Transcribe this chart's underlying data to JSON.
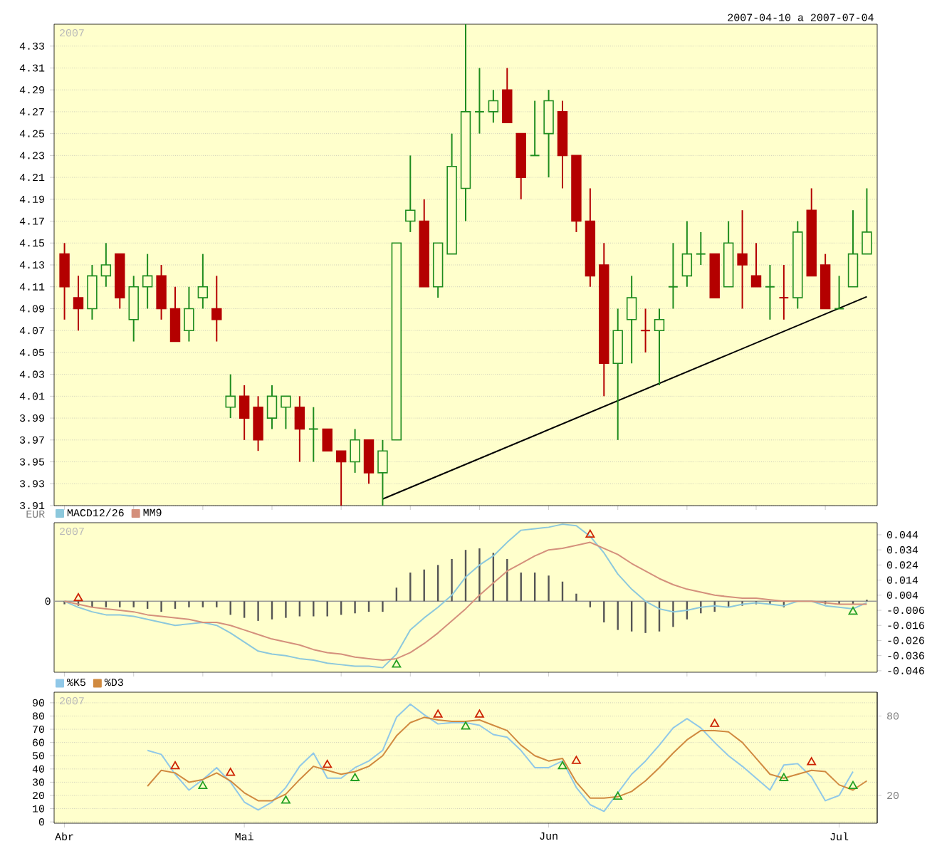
{
  "chart_data": [
    {
      "type": "candlestick",
      "subtitle": "2007-04-10 a 2007-07-04",
      "annotations": [
        "2007"
      ],
      "categories": [
        null,
        null,
        null,
        null,
        null,
        null,
        null,
        null,
        null,
        null,
        null,
        null,
        null,
        null,
        null,
        null,
        null,
        null,
        null,
        null,
        null,
        null,
        null,
        null,
        null,
        null,
        null,
        null,
        null,
        null,
        null,
        null,
        null,
        null,
        null,
        null,
        null,
        null,
        null,
        null,
        null,
        null,
        null,
        null,
        null,
        null,
        null,
        null,
        null,
        null,
        null,
        null,
        null,
        null,
        null,
        null,
        null,
        null,
        null
      ],
      "ohlc": [
        [
          4.14,
          4.15,
          4.08,
          4.11
        ],
        [
          4.1,
          4.12,
          4.07,
          4.09
        ],
        [
          4.09,
          4.13,
          4.08,
          4.12
        ],
        [
          4.12,
          4.15,
          4.11,
          4.13
        ],
        [
          4.14,
          4.14,
          4.09,
          4.1
        ],
        [
          4.08,
          4.12,
          4.06,
          4.11
        ],
        [
          4.11,
          4.14,
          4.09,
          4.12
        ],
        [
          4.12,
          4.13,
          4.08,
          4.09
        ],
        [
          4.09,
          4.11,
          4.06,
          4.06
        ],
        [
          4.07,
          4.11,
          4.06,
          4.09
        ],
        [
          4.1,
          4.14,
          4.09,
          4.11
        ],
        [
          4.09,
          4.12,
          4.06,
          4.08
        ],
        [
          4.0,
          4.03,
          3.99,
          4.01
        ],
        [
          4.01,
          4.02,
          3.97,
          3.99
        ],
        [
          4.0,
          4.01,
          3.96,
          3.97
        ],
        [
          3.99,
          4.02,
          3.98,
          4.01
        ],
        [
          4.0,
          4.01,
          3.98,
          4.01
        ],
        [
          4.0,
          4.01,
          3.95,
          3.98
        ],
        [
          3.98,
          4.0,
          3.95,
          3.98
        ],
        [
          3.98,
          3.98,
          3.96,
          3.96
        ],
        [
          3.96,
          3.96,
          3.91,
          3.95
        ],
        [
          3.95,
          3.98,
          3.94,
          3.97
        ],
        [
          3.97,
          3.97,
          3.93,
          3.94
        ],
        [
          3.94,
          3.97,
          3.91,
          3.96
        ],
        [
          3.97,
          4.15,
          3.97,
          4.15
        ],
        [
          4.17,
          4.23,
          4.16,
          4.18
        ],
        [
          4.17,
          4.19,
          4.11,
          4.11
        ],
        [
          4.11,
          4.15,
          4.1,
          4.15
        ],
        [
          4.14,
          4.25,
          4.14,
          4.22
        ],
        [
          4.2,
          4.35,
          4.17,
          4.27
        ],
        [
          4.27,
          4.31,
          4.25,
          4.27
        ],
        [
          4.27,
          4.29,
          4.26,
          4.28
        ],
        [
          4.29,
          4.31,
          4.26,
          4.26
        ],
        [
          4.25,
          4.25,
          4.19,
          4.21
        ],
        [
          4.23,
          4.28,
          4.23,
          4.23
        ],
        [
          4.25,
          4.29,
          4.21,
          4.28
        ],
        [
          4.27,
          4.28,
          4.2,
          4.23
        ],
        [
          4.23,
          4.23,
          4.16,
          4.17
        ],
        [
          4.17,
          4.2,
          4.11,
          4.12
        ],
        [
          4.13,
          4.15,
          4.01,
          4.04
        ],
        [
          4.04,
          4.09,
          3.97,
          4.07
        ],
        [
          4.08,
          4.12,
          4.04,
          4.1
        ],
        [
          4.07,
          4.09,
          4.05,
          4.07
        ],
        [
          4.07,
          4.09,
          4.02,
          4.08
        ],
        [
          4.11,
          4.15,
          4.09,
          4.11
        ],
        [
          4.12,
          4.17,
          4.11,
          4.14
        ],
        [
          4.14,
          4.16,
          4.13,
          4.14
        ],
        [
          4.14,
          4.14,
          4.1,
          4.1
        ],
        [
          4.11,
          4.17,
          4.11,
          4.15
        ],
        [
          4.14,
          4.18,
          4.09,
          4.13
        ],
        [
          4.12,
          4.15,
          4.11,
          4.11
        ],
        [
          4.11,
          4.13,
          4.08,
          4.11
        ],
        [
          4.1,
          4.13,
          4.08,
          4.1
        ],
        [
          4.1,
          4.17,
          4.09,
          4.16
        ],
        [
          4.18,
          4.2,
          4.12,
          4.12
        ],
        [
          4.13,
          4.14,
          4.09,
          4.09
        ],
        [
          4.09,
          4.12,
          4.09,
          4.09
        ],
        [
          4.11,
          4.18,
          4.11,
          4.14
        ],
        [
          4.14,
          4.2,
          4.14,
          4.16
        ]
      ],
      "colors": [
        "#b40000",
        "#b40000",
        "#1e8c1e",
        "#1e8c1e",
        "#b40000",
        "#1e8c1e",
        "#1e8c1e",
        "#b40000",
        "#b40000",
        "#1e8c1e",
        "#1e8c1e",
        "#b40000",
        "#1e8c1e",
        "#b40000",
        "#b40000",
        "#1e8c1e",
        "#1e8c1e",
        "#b40000",
        "#1e8c1e",
        "#b40000",
        "#b40000",
        "#1e8c1e",
        "#b40000",
        "#1e8c1e",
        "#1e8c1e",
        "#1e8c1e",
        "#b40000",
        "#1e8c1e",
        "#1e8c1e",
        "#1e8c1e",
        "#1e8c1e",
        "#1e8c1e",
        "#b40000",
        "#b40000",
        "#1e8c1e",
        "#1e8c1e",
        "#b40000",
        "#b40000",
        "#b40000",
        "#b40000",
        "#1e8c1e",
        "#1e8c1e",
        "#b40000",
        "#1e8c1e",
        "#1e8c1e",
        "#1e8c1e",
        "#1e8c1e",
        "#b40000",
        "#1e8c1e",
        "#b40000",
        "#b40000",
        "#1e8c1e",
        "#b40000",
        "#1e8c1e",
        "#b40000",
        "#b40000",
        "#1e8c1e",
        "#1e8c1e",
        "#1e8c1e"
      ],
      "series": [
        {
          "type": "line",
          "color": "#000000",
          "values": [
            null,
            null,
            null,
            null,
            null,
            null,
            null,
            null,
            null,
            null,
            null,
            null,
            null,
            null,
            null,
            null,
            null,
            null,
            null,
            null,
            null,
            null,
            null,
            3.916,
            null,
            null,
            null,
            null,
            null,
            null,
            null,
            null,
            null,
            null,
            null,
            null,
            null,
            null,
            null,
            null,
            null,
            null,
            null,
            null,
            null,
            null,
            null,
            null,
            null,
            null,
            null,
            null,
            null,
            null,
            null,
            null,
            null,
            null,
            4.101
          ]
        }
      ],
      "ylim": [
        3.91,
        4.35
      ],
      "yticks": [
        3.91,
        3.93,
        3.95,
        3.97,
        3.99,
        4.01,
        4.03,
        4.05,
        4.07,
        4.09,
        4.11,
        4.13,
        4.15,
        4.17,
        4.19,
        4.21,
        4.23,
        4.25,
        4.27,
        4.29,
        4.31,
        4.33
      ],
      "grid": "y",
      "tick_labels": "y"
    },
    {
      "type": "line",
      "annotations": [
        "2007"
      ],
      "ylabel": "EUR",
      "categories": [
        null,
        null,
        null,
        null,
        null,
        null,
        null,
        null,
        null,
        null,
        null,
        null,
        null,
        null,
        null,
        null,
        null,
        null,
        null,
        null,
        null,
        null,
        null,
        null,
        null,
        null,
        null,
        null,
        null,
        null,
        null,
        null,
        null,
        null,
        null,
        null,
        null,
        null,
        null,
        null,
        null,
        null,
        null,
        null,
        null,
        null,
        null,
        null,
        null,
        null,
        null,
        null,
        null,
        null,
        null,
        null,
        null,
        null,
        null
      ],
      "series": [
        {
          "type": "bar",
          "axis": "y2",
          "color": "#555555",
          "values": [
            -0.002,
            -0.003,
            -0.004,
            -0.004,
            -0.004,
            -0.004,
            -0.005,
            -0.007,
            -0.005,
            -0.004,
            -0.004,
            -0.004,
            -0.009,
            -0.011,
            -0.013,
            -0.012,
            -0.011,
            -0.01,
            -0.01,
            -0.01,
            -0.009,
            -0.008,
            -0.007,
            -0.007,
            0.009,
            0.019,
            0.021,
            0.024,
            0.028,
            0.034,
            0.035,
            0.032,
            0.028,
            0.019,
            0.019,
            0.017,
            0.013,
            0.005,
            -0.004,
            -0.014,
            -0.019,
            -0.02,
            -0.021,
            -0.02,
            -0.017,
            -0.012,
            -0.008,
            -0.007,
            -0.004,
            -0.003,
            -0.002,
            -0.002,
            -0.004,
            null,
            0,
            -0.002,
            -0.002,
            -0.002,
            0.001
          ]
        },
        {
          "name": "MACD12/26",
          "axis": "y2",
          "color": "#8cc8dc",
          "values": [
            0,
            -0.004,
            -0.007,
            -0.009,
            -0.009,
            -0.01,
            -0.012,
            -0.014,
            -0.016,
            -0.015,
            -0.014,
            -0.016,
            -0.021,
            -0.027,
            -0.033,
            -0.035,
            -0.036,
            -0.038,
            -0.039,
            -0.041,
            -0.042,
            -0.043,
            -0.043,
            -0.044,
            -0.035,
            -0.019,
            -0.011,
            -0.004,
            0.004,
            0.016,
            0.024,
            0.03,
            0.039,
            0.047,
            0.048,
            0.049,
            0.051,
            0.05,
            0.043,
            0.032,
            0.018,
            0.008,
            0,
            -0.005,
            -0.007,
            -0.006,
            -0.004,
            -0.003,
            -0.004,
            -0.002,
            -0.001,
            -0.002,
            -0.003,
            0,
            0,
            -0.003,
            -0.004,
            -0.005,
            -0.001
          ]
        },
        {
          "name": "MM9",
          "axis": "y2",
          "color": "#d4907c",
          "values": [
            0,
            -0.002,
            -0.004,
            -0.005,
            -0.006,
            -0.007,
            -0.009,
            -0.01,
            -0.011,
            -0.012,
            -0.014,
            -0.014,
            -0.016,
            -0.019,
            -0.022,
            -0.025,
            -0.027,
            -0.029,
            -0.032,
            -0.034,
            -0.035,
            -0.037,
            -0.038,
            -0.039,
            -0.038,
            -0.034,
            -0.028,
            -0.021,
            -0.013,
            -0.005,
            0.004,
            0.012,
            0.02,
            0.025,
            0.03,
            0.034,
            0.035,
            0.037,
            0.039,
            0.035,
            0.031,
            0.025,
            0.02,
            0.015,
            0.011,
            0.008,
            0.006,
            0.004,
            0.003,
            0.002,
            0.002,
            0.001,
            0,
            0,
            0,
            -0.001,
            -0.002,
            -0.002,
            -0.002
          ]
        },
        {
          "type": "scatter",
          "axis": "y2",
          "marker": "triangle",
          "color": "#cc2200",
          "values": [
            null,
            0.002,
            null,
            null,
            null,
            null,
            null,
            null,
            null,
            null,
            null,
            null,
            null,
            null,
            null,
            null,
            null,
            null,
            null,
            null,
            null,
            null,
            null,
            null,
            null,
            null,
            null,
            null,
            null,
            null,
            null,
            null,
            null,
            null,
            null,
            null,
            null,
            null,
            0.044,
            null,
            null,
            null,
            null,
            null,
            null,
            null,
            null,
            null,
            null,
            null,
            null,
            null,
            null,
            null,
            null,
            null,
            null,
            null,
            null
          ]
        },
        {
          "type": "scatter",
          "axis": "y2",
          "marker": "triangle",
          "color": "#22a022",
          "values": [
            null,
            null,
            null,
            null,
            null,
            null,
            null,
            null,
            null,
            null,
            null,
            null,
            null,
            null,
            null,
            null,
            null,
            null,
            null,
            null,
            null,
            null,
            null,
            null,
            -0.042,
            null,
            null,
            null,
            null,
            null,
            null,
            null,
            null,
            null,
            null,
            null,
            null,
            null,
            null,
            null,
            null,
            null,
            null,
            null,
            null,
            null,
            null,
            null,
            null,
            null,
            null,
            null,
            null,
            null,
            null,
            null,
            null,
            -0.007,
            null
          ]
        }
      ],
      "ref_lines": [
        {
          "axis": "y2",
          "value": 0,
          "label": "0",
          "color": "#999999"
        }
      ],
      "legend": "top left",
      "y2lim": [
        -0.047,
        0.052
      ],
      "y2ticks": [
        0.044,
        0.034,
        0.024,
        0.014,
        0.004,
        -0.006,
        -0.016,
        -0.026,
        -0.036,
        -0.046
      ],
      "tick_labels": "y"
    },
    {
      "type": "line",
      "annotations": [
        "2007"
      ],
      "categories": [
        "Abr",
        null,
        null,
        null,
        null,
        null,
        null,
        null,
        null,
        null,
        null,
        null,
        null,
        "Mai",
        null,
        null,
        null,
        null,
        null,
        null,
        null,
        null,
        null,
        null,
        null,
        null,
        null,
        null,
        null,
        null,
        null,
        null,
        null,
        null,
        null,
        "Jun",
        null,
        null,
        null,
        null,
        null,
        null,
        null,
        null,
        null,
        null,
        null,
        null,
        null,
        null,
        null,
        null,
        null,
        null,
        null,
        null,
        "Jul",
        null,
        null
      ],
      "series": [
        {
          "name": "%K5",
          "color": "#90c8e8",
          "values": [
            null,
            null,
            null,
            null,
            null,
            null,
            54,
            51,
            36,
            24,
            32,
            41,
            30,
            15,
            9,
            15,
            26,
            42,
            52,
            33,
            33,
            41,
            46,
            54,
            79,
            89,
            81,
            74,
            75,
            75,
            73,
            66,
            64,
            54,
            41,
            41,
            46,
            26,
            13,
            8,
            22,
            36,
            46,
            58,
            71,
            78,
            71,
            60,
            50,
            42,
            33,
            24,
            43,
            44,
            34,
            16,
            20,
            38,
            null
          ]
        },
        {
          "name": "%D3",
          "color": "#d08a40",
          "values": [
            null,
            null,
            null,
            null,
            null,
            null,
            27,
            39,
            37,
            30,
            32,
            37,
            31,
            22,
            16,
            16,
            21,
            32,
            42,
            39,
            36,
            38,
            42,
            50,
            65,
            75,
            79,
            77,
            76,
            76,
            77,
            73,
            69,
            58,
            50,
            46,
            48,
            30,
            18,
            18,
            19,
            23,
            31,
            41,
            52,
            62,
            69,
            69,
            68,
            60,
            48,
            36,
            33,
            36,
            39,
            38,
            28,
            24,
            31
          ]
        },
        {
          "type": "scatter",
          "marker": "triangle",
          "color": "#cc2200",
          "values": [
            null,
            null,
            null,
            null,
            null,
            null,
            null,
            null,
            42,
            null,
            null,
            null,
            37,
            null,
            null,
            null,
            null,
            null,
            null,
            43,
            null,
            null,
            null,
            null,
            null,
            null,
            null,
            81,
            null,
            null,
            81,
            null,
            null,
            null,
            null,
            null,
            null,
            46,
            null,
            null,
            null,
            null,
            null,
            null,
            null,
            null,
            null,
            74,
            null,
            null,
            null,
            null,
            null,
            null,
            45,
            null,
            null,
            null,
            null
          ]
        },
        {
          "type": "scatter",
          "marker": "triangle",
          "color": "#22a022",
          "values": [
            null,
            null,
            null,
            null,
            null,
            null,
            null,
            null,
            null,
            null,
            27,
            null,
            null,
            null,
            null,
            null,
            16,
            null,
            null,
            null,
            null,
            33,
            null,
            null,
            null,
            null,
            null,
            null,
            null,
            72,
            null,
            null,
            null,
            null,
            null,
            null,
            42,
            null,
            null,
            null,
            19,
            null,
            null,
            null,
            null,
            null,
            null,
            null,
            null,
            null,
            null,
            null,
            33,
            null,
            null,
            null,
            null,
            27,
            null
          ]
        }
      ],
      "legend": "top left",
      "ylim": [
        -1,
        98
      ],
      "yticks": [
        0,
        10,
        20,
        30,
        40,
        50,
        60,
        70,
        80,
        90
      ],
      "y2lim": [
        -1,
        98
      ],
      "y2ticks": [
        20,
        80
      ],
      "grid": "y"
    }
  ]
}
